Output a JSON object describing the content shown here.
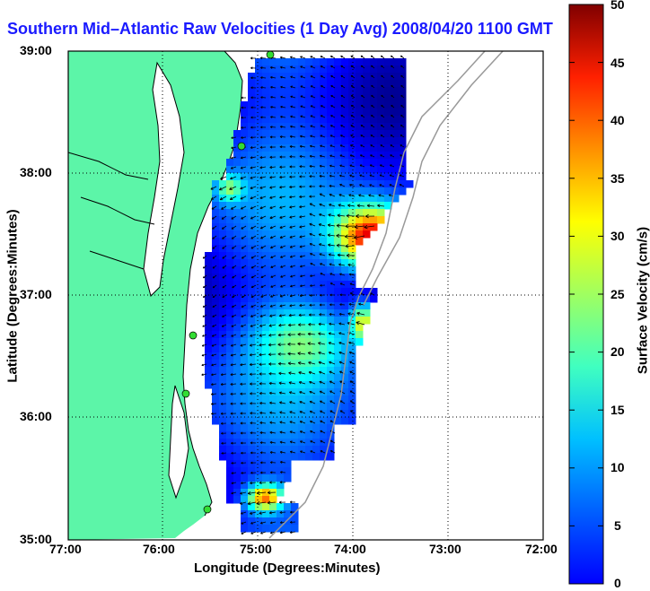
{
  "title": "Southern Mid–Atlantic Raw Velocities (1 Day Avg) 2008/04/20 1100 GMT",
  "xaxis": {
    "label": "Longitude (Degrees:Minutes)",
    "ticks": [
      "77:00",
      "76:00",
      "75:00",
      "74:00",
      "73:00",
      "72:00"
    ]
  },
  "yaxis": {
    "label": "Latitude (Degrees:Minutes)",
    "ticks": [
      "39:00",
      "38:00",
      "37:00",
      "36:00",
      "35:00"
    ]
  },
  "colorbar": {
    "label": "Surface Velocity (cm/s)",
    "ticks": [
      "50",
      "45",
      "40",
      "35",
      "30",
      "25",
      "20",
      "15",
      "10",
      "5",
      "0"
    ],
    "min": 0,
    "max": 50
  },
  "colors": {
    "land": "#5cf5a8",
    "title": "#1a1aff",
    "station": "#33dd33"
  }
}
